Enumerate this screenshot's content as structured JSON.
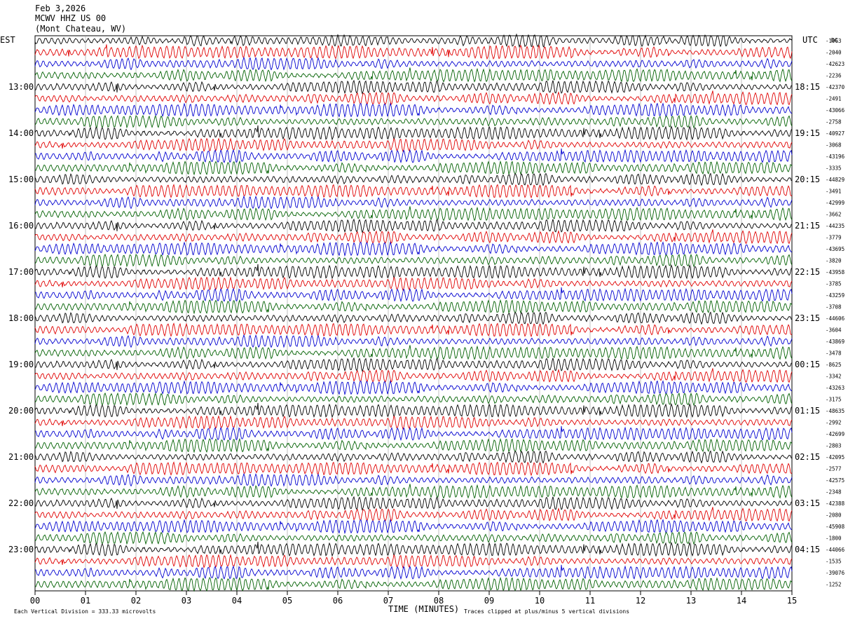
{
  "header": {
    "date": "Feb 3,2026",
    "station": "MCWV HHZ US 00",
    "location": "(Mont Chateau, WV)"
  },
  "labels": {
    "left_timezone": "EST",
    "right_timezone": "UTC",
    "dc_label": "DC",
    "x_axis_title": "TIME (MINUTES)",
    "scale_note": "Each Vertical Division =  333.33 microvolts",
    "clip_note": "Traces clipped at plus/minus 5 vertical divisions"
  },
  "chart_data": {
    "type": "line",
    "title": "MCWV HHZ US 00",
    "xlabel": "TIME (MINUTES)",
    "xlim": [
      0,
      15
    ],
    "x_ticks": [
      "00",
      "01",
      "02",
      "03",
      "04",
      "05",
      "06",
      "07",
      "08",
      "09",
      "10",
      "11",
      "12",
      "13",
      "14",
      "15"
    ],
    "left_hour_labels": [
      "13:00",
      "14:00",
      "15:00",
      "16:00",
      "17:00",
      "18:00",
      "19:00",
      "20:00",
      "21:00",
      "22:00",
      "23:00"
    ],
    "right_hour_labels": [
      "18:15",
      "19:15",
      "20:15",
      "21:15",
      "22:15",
      "23:15",
      "00:15",
      "01:15",
      "02:15",
      "03:15",
      "04:15"
    ],
    "first_labeled_row": 4,
    "rows_per_hour": 4,
    "trace_colors": [
      "#000000",
      "#e00000",
      "#0000d0",
      "#006000"
    ],
    "dc_offsets": [
      "-1963",
      "-2040",
      "-42623",
      "-2236",
      "-42370",
      "-2491",
      "-43066",
      "-2758",
      "-40927",
      "-3068",
      "-43196",
      "-3335",
      "-44829",
      "-3491",
      "-42999",
      "-3662",
      "-44235",
      "-3779",
      "-43695",
      "-3820",
      "-43958",
      "-3785",
      "-43259",
      "-3708",
      "-44606",
      "-3604",
      "-43869",
      "-3478",
      "-8625",
      "-3342",
      "-43263",
      "-3175",
      "-48635",
      "-2992",
      "-42699",
      "-2803",
      "-42095",
      "-2577",
      "-42575",
      "-2348",
      "-42388",
      "-2080",
      "-45908",
      "-1800",
      "-44066",
      "-1535",
      "-39076",
      "-1252"
    ]
  }
}
